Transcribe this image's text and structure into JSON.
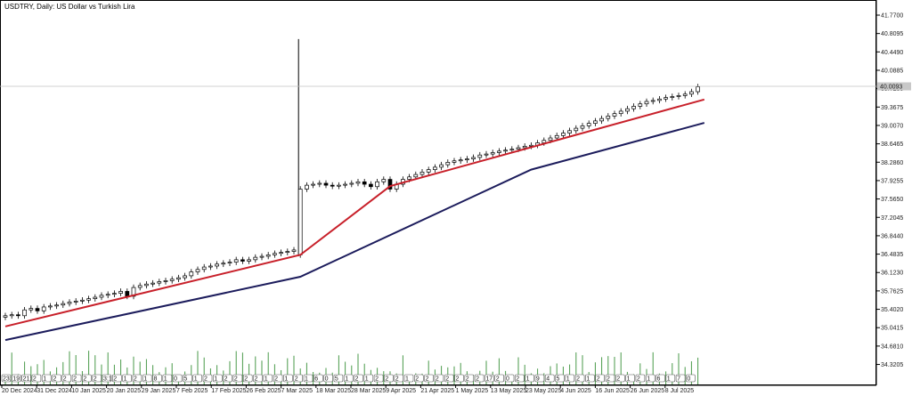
{
  "window": {
    "title": "USDTRY, Daily:  US Dollar vs Turkish Lira"
  },
  "chart_data": {
    "type": "candlestick",
    "title": "USDTRY, Daily:  US Dollar vs Turkish Lira",
    "ylim": [
      34.2,
      41.6
    ],
    "y_ticks": [
      "41.7700",
      "40.8095",
      "40.4490",
      "40.0885",
      "39.7280",
      "39.3675",
      "39.0070",
      "38.6465",
      "38.2860",
      "37.9255",
      "37.5650",
      "37.2045",
      "36.8440",
      "36.4835",
      "36.1230",
      "35.7625",
      "35.4020",
      "35.0415",
      "34.6810",
      "34.3205"
    ],
    "x_ticks": [
      "20 Dec 2024",
      "31 Dec 2024",
      "10 Jan 2025",
      "20 Jan 2025",
      "29 Jan 2025",
      "7 Feb 2025",
      "17 Feb 2025",
      "26 Feb 2025",
      "7 Mar 2025",
      "18 Mar 2025",
      "28 Mar 2025",
      "9 Apr 2025",
      "21 Apr 2025",
      "1 May 2025",
      "13 May 2025",
      "23 May 2025",
      "4 Jun 2025",
      "16 Jun 2025",
      "26 Jun 2025",
      "8 Jul 2025"
    ],
    "current_price_label": "40.0093",
    "current_price": 40.01,
    "grid": false,
    "candles_note": "approximate daily OHLC read from chart",
    "close": [
      35.3,
      35.32,
      35.3,
      35.42,
      35.45,
      35.4,
      35.48,
      35.5,
      35.52,
      35.55,
      35.58,
      35.6,
      35.62,
      35.65,
      35.68,
      35.72,
      35.74,
      35.76,
      35.8,
      35.7,
      35.88,
      35.92,
      35.95,
      35.97,
      36.0,
      36.02,
      36.05,
      36.08,
      36.12,
      36.2,
      36.25,
      36.3,
      36.32,
      36.36,
      36.38,
      36.4,
      36.45,
      36.42,
      36.45,
      36.5,
      36.52,
      36.55,
      36.58,
      36.6,
      36.62,
      36.65,
      37.9,
      37.98,
      38.0,
      38.02,
      37.98,
      37.96,
      37.98,
      38.0,
      38.02,
      38.05,
      38.0,
      37.95,
      38.05,
      38.1,
      37.9,
      38.0,
      38.1,
      38.15,
      38.2,
      38.25,
      38.3,
      38.35,
      38.4,
      38.45,
      38.48,
      38.5,
      38.52,
      38.55,
      38.6,
      38.62,
      38.65,
      38.68,
      38.7,
      38.72,
      38.75,
      38.78,
      38.8,
      38.85,
      38.9,
      38.95,
      39.0,
      39.05,
      39.1,
      39.15,
      39.2,
      39.25,
      39.3,
      39.35,
      39.4,
      39.45,
      39.5,
      39.55,
      39.6,
      39.65,
      39.7,
      39.72,
      39.75,
      39.78,
      39.8,
      39.82,
      39.85,
      39.9,
      40.0
    ],
    "ma_fast": {
      "name": "",
      "color": "#c8202a",
      "points": [
        [
          0,
          35.08
        ],
        [
          46,
          36.55
        ],
        [
          60,
          37.96
        ],
        [
          109,
          39.74
        ]
      ]
    },
    "ma_slow": {
      "name": "",
      "color": "#1c1c5c",
      "points": [
        [
          0,
          34.8
        ],
        [
          46,
          36.1
        ],
        [
          82,
          38.3
        ],
        [
          109,
          39.26
        ]
      ]
    },
    "spike_high": 40.98,
    "spike_low": 36.52,
    "volume_color": "#4a9a4a"
  },
  "time_marks": [
    "23:1",
    "19:1",
    "21:00",
    "2",
    "1",
    "2",
    "2",
    "2",
    "2",
    "2",
    "3:1",
    "2",
    "1",
    "2",
    "1",
    "8",
    "1",
    "0",
    "5",
    "1",
    "2",
    "1",
    "2",
    "2",
    "2",
    "2",
    "1",
    "2",
    "1",
    "2",
    "1",
    "6",
    "0",
    "5",
    "1",
    "2",
    "1",
    "2",
    "2",
    "2",
    "1",
    "2",
    "2",
    "2",
    "2",
    "2",
    "2",
    "2",
    "17",
    "2",
    "0",
    "2",
    "1",
    "9",
    "4",
    "5",
    "1",
    "2",
    "1",
    "2",
    "2",
    "2",
    "1",
    "2",
    "1",
    "6",
    "1",
    "7",
    "0",
    "0"
  ]
}
